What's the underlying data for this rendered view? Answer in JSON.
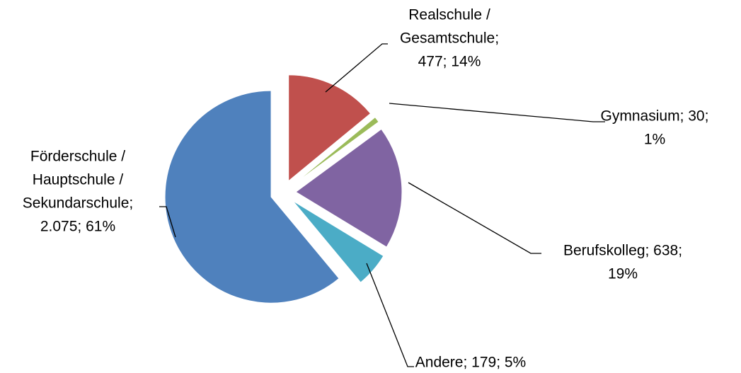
{
  "chart_data": {
    "type": "pie",
    "labels": [
      [
        "Realschule /",
        "Gesamtschule;",
        "477; 14%"
      ],
      [
        "Gymnasium; 30;",
        "1%"
      ],
      [
        "Berufskolleg; 638;",
        "19%"
      ],
      [
        "Andere; 179; 5%"
      ],
      [
        "Förderschule /",
        "Hauptschule /",
        "Sekundarschule;",
        "2.075; 61%"
      ]
    ],
    "values": [
      477,
      30,
      638,
      179,
      2075
    ],
    "colors": [
      "#c0504d",
      "#9bbb59",
      "#8064a2",
      "#4bacc6",
      "#4f81bd"
    ],
    "exploded": true
  }
}
